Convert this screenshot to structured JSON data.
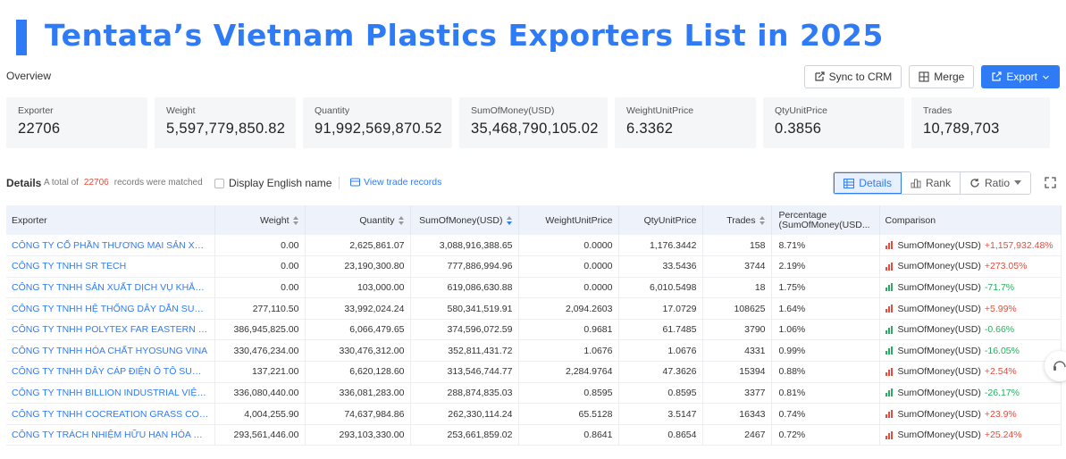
{
  "title": "Tentata’s Vietnam Plastics Exporters List in 2025",
  "overview_label": "Overview",
  "toolbar": {
    "sync_label": "Sync to CRM",
    "merge_label": "Merge",
    "export_label": "Export"
  },
  "stats": [
    {
      "label": "Exporter",
      "value": "22706"
    },
    {
      "label": "Weight",
      "value": "5,597,779,850.82"
    },
    {
      "label": "Quantity",
      "value": "91,992,569,870.52"
    },
    {
      "label": "SumOfMoney(USD)",
      "value": "35,468,790,105.02"
    },
    {
      "label": "WeightUnitPrice",
      "value": "6.3362"
    },
    {
      "label": "QtyUnitPrice",
      "value": "0.3856"
    },
    {
      "label": "Trades",
      "value": "10,789,703"
    }
  ],
  "details": {
    "label": "Details",
    "total_prefix": "A total of",
    "total_count": "22706",
    "total_suffix": "records were matched",
    "english_name_label": "Display English name",
    "view_trade_label": "View trade records",
    "view_modes": [
      "Details",
      "Rank",
      "Ratio"
    ]
  },
  "colors": {
    "accent": "#2f7bf6",
    "increase": "#e74c3c",
    "decrease": "#27ae60"
  },
  "table": {
    "headers": [
      "Exporter",
      "Weight",
      "Quantity",
      "SumOfMoney(USD)",
      "WeightUnitPrice",
      "QtyUnitPrice",
      "Trades",
      "Percentage (SumOfMoney(USD...",
      "Comparison"
    ],
    "header_percentage_line1": "Percentage",
    "header_percentage_line2": "(SumOfMoney(USD...",
    "rows": [
      {
        "exporter": "CÔNG TY CỔ PHẦN THƯƠNG MẠI SẢN XUẤT XU...",
        "weight": "0.00",
        "quantity": "2,625,861.07",
        "sum": "3,088,916,388.65",
        "wup": "0.0000",
        "qup": "1,176.3442",
        "trades": "158",
        "pct": "8.71%",
        "cmp_label": "SumOfMoney(USD)",
        "cmp_value": "+1,157,932.48%",
        "trend": "up"
      },
      {
        "exporter": "CÔNG TY TNHH SR TECH",
        "weight": "0.00",
        "quantity": "23,190,300.80",
        "sum": "777,886,994.96",
        "wup": "0.0000",
        "qup": "33.5436",
        "trades": "3744",
        "pct": "2.19%",
        "cmp_label": "SumOfMoney(USD)",
        "cmp_value": "+273.05%",
        "trend": "up"
      },
      {
        "exporter": "CÔNG TY TNHH SẢN XUẤT DỊCH VỤ KHẮC DẤU ...",
        "weight": "0.00",
        "quantity": "103,000.00",
        "sum": "619,086,630.88",
        "wup": "0.0000",
        "qup": "6,010.5498",
        "trades": "18",
        "pct": "1.75%",
        "cmp_label": "SumOfMoney(USD)",
        "cmp_value": "-71.7%",
        "trend": "down"
      },
      {
        "exporter": "CÔNG TY TNHH HỆ THỐNG DÂY DẪN SUMI VIỆT...",
        "weight": "277,110.50",
        "quantity": "33,992,024.24",
        "sum": "580,341,519.91",
        "wup": "2,094.2603",
        "qup": "17.0729",
        "trades": "108625",
        "pct": "1.64%",
        "cmp_label": "SumOfMoney(USD)",
        "cmp_value": "+5.99%",
        "trend": "up"
      },
      {
        "exporter": "CÔNG TY TNHH POLYTEX FAR EASTERN VIỆT N...",
        "weight": "386,945,825.00",
        "quantity": "6,066,479.65",
        "sum": "374,596,072.59",
        "wup": "0.9681",
        "qup": "61.7485",
        "trades": "3790",
        "pct": "1.06%",
        "cmp_label": "SumOfMoney(USD)",
        "cmp_value": "-0.66%",
        "trend": "down"
      },
      {
        "exporter": "CÔNG TY TNHH HÓA CHẤT HYOSUNG VINA",
        "weight": "330,476,234.00",
        "quantity": "330,476,312.00",
        "sum": "352,811,431.72",
        "wup": "1.0676",
        "qup": "1.0676",
        "trades": "4331",
        "pct": "0.99%",
        "cmp_label": "SumOfMoney(USD)",
        "cmp_value": "-16.05%",
        "trend": "down"
      },
      {
        "exporter": "CÔNG TY TNHH DÂY CÁP ĐIỆN Ô TÔ SUMIDEN ...",
        "weight": "137,221.00",
        "quantity": "6,620,128.60",
        "sum": "313,546,744.77",
        "wup": "2,284.9764",
        "qup": "47.3626",
        "trades": "15394",
        "pct": "0.88%",
        "cmp_label": "SumOfMoney(USD)",
        "cmp_value": "+2.54%",
        "trend": "up"
      },
      {
        "exporter": "CÔNG TY TNHH BILLION INDUSTRIAL VIỆT NAM",
        "weight": "336,080,440.00",
        "quantity": "336,081,283.00",
        "sum": "288,874,835.03",
        "wup": "0.8595",
        "qup": "0.8595",
        "trades": "3377",
        "pct": "0.81%",
        "cmp_label": "SumOfMoney(USD)",
        "cmp_value": "-26.17%",
        "trend": "down"
      },
      {
        "exporter": "CÔNG TY TNHH COCREATION GRASS CORPORA...",
        "weight": "4,004,255.90",
        "quantity": "74,637,984.86",
        "sum": "262,330,114.24",
        "wup": "65.5128",
        "qup": "3.5147",
        "trades": "16343",
        "pct": "0.74%",
        "cmp_label": "SumOfMoney(USD)",
        "cmp_value": "+23.9%",
        "trend": "up"
      },
      {
        "exporter": "CÔNG TY TRÁCH NHIỆM HỮU HẠN HÓA DẦU LO...",
        "weight": "293,561,446.00",
        "quantity": "293,103,330.00",
        "sum": "253,661,859.02",
        "wup": "0.8641",
        "qup": "0.8654",
        "trades": "2467",
        "pct": "0.72%",
        "cmp_label": "SumOfMoney(USD)",
        "cmp_value": "+25.24%",
        "trend": "up"
      }
    ]
  }
}
